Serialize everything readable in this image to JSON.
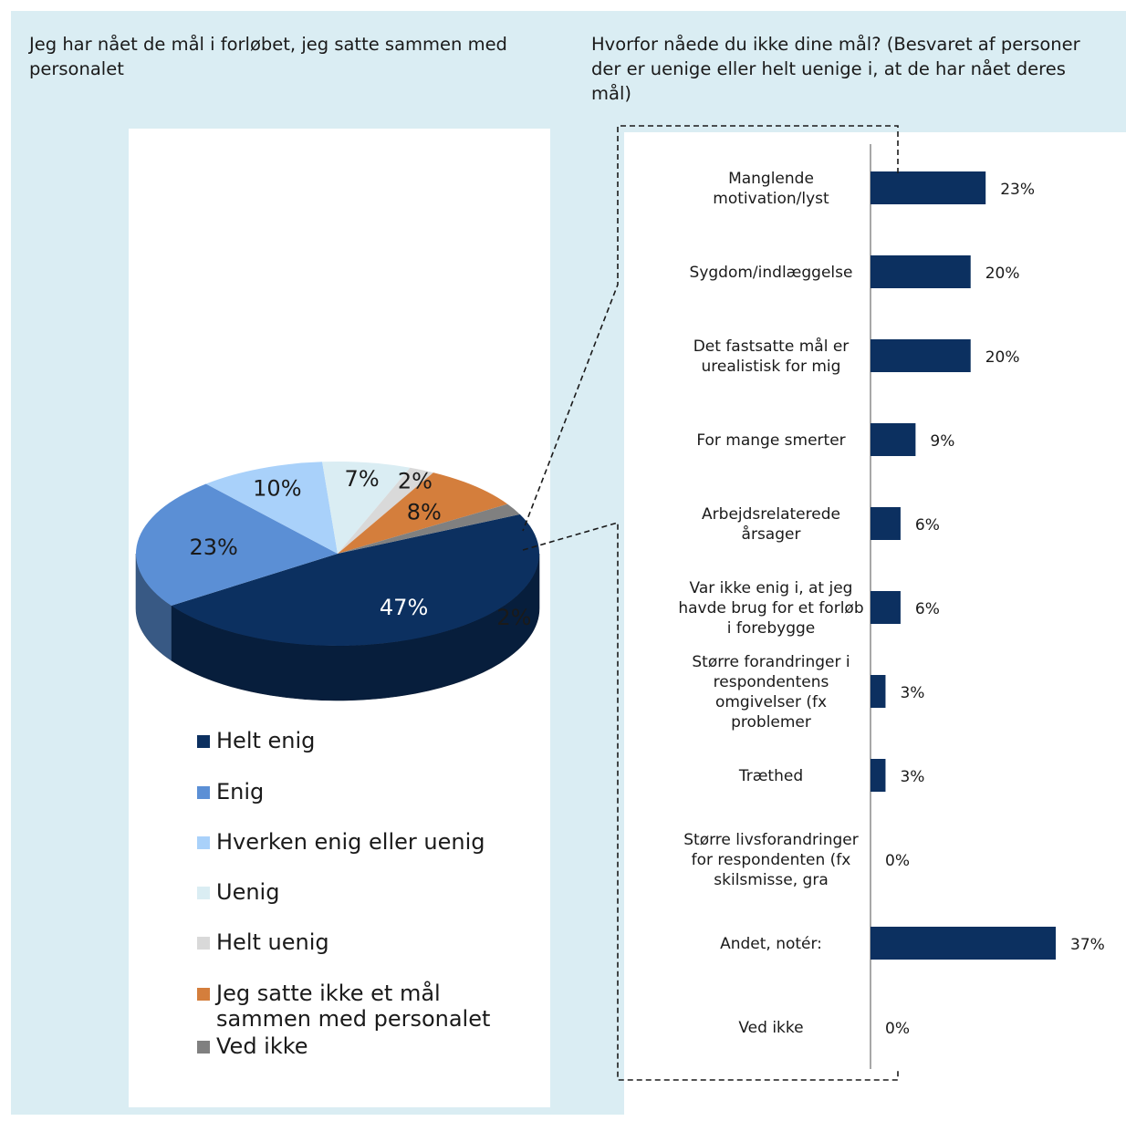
{
  "pie": {
    "title": "Jeg har nået de mål i forløbet, jeg satte sammen med personalet"
  },
  "bar": {
    "title": "Hvorfor nåede du ikke dine mål? (Besvaret af personer der er uenige eller helt uenige i, at de har nået deres mål)"
  },
  "chart_data": [
    {
      "type": "pie",
      "title": "Jeg har nået de mål i forløbet, jeg satte sammen med personalet",
      "unit": "%",
      "slices": [
        {
          "label": "Helt enig",
          "value": 47,
          "display": "47%",
          "color": "#0c3060"
        },
        {
          "label": "Enig",
          "value": 23,
          "display": "23%",
          "color": "#5b8fd5"
        },
        {
          "label": "Hverken enig eller uenig",
          "value": 10,
          "display": "10%",
          "color": "#a9d1fa"
        },
        {
          "label": "Uenig",
          "value": 7,
          "display": "7%",
          "color": "#daedf3"
        },
        {
          "label": "Helt uenig",
          "value": 2,
          "display": "2%",
          "color": "#d9d9d9"
        },
        {
          "label": "Jeg satte ikke et mål sammen med personalet",
          "value": 8,
          "display": "8%",
          "color": "#d47e3c"
        },
        {
          "label": "Ved ikke",
          "value": 2,
          "display": "2%",
          "color": "#808080"
        }
      ],
      "legend_position": "bottom"
    },
    {
      "type": "bar",
      "orientation": "horizontal",
      "title": "Hvorfor nåede du ikke dine mål? (Besvaret af personer der er uenige eller helt uenige i, at de har nået deres mål)",
      "unit": "%",
      "color": "#0c3060",
      "categories": [
        "Manglende motivation/lyst",
        "Sygdom/indlæggelse",
        "Det fastsatte mål er urealistisk for mig",
        "For mange smerter",
        "Arbejdsrelaterede årsager",
        "Var ikke enig i, at jeg havde brug for et forløb i forebygge",
        "Større forandringer i respondentens omgivelser (fx problemer",
        "Træthed",
        "Større livsforandringer for respondenten (fx skilsmisse, gra",
        "Andet, notér:",
        "Ved ikke"
      ],
      "category_lines": [
        [
          "Manglende",
          "motivation/lyst"
        ],
        [
          "Sygdom/indlæggelse"
        ],
        [
          "Det fastsatte mål er",
          "urealistisk for mig"
        ],
        [
          "For mange smerter"
        ],
        [
          "Arbejdsrelaterede",
          "årsager"
        ],
        [
          "Var ikke enig i, at jeg",
          "havde brug for et forløb",
          "i forebygge"
        ],
        [
          "Større forandringer i",
          "respondentens",
          "omgivelser (fx",
          "problemer"
        ],
        [
          "Træthed"
        ],
        [
          "Større livsforandringer",
          "for respondenten (fx",
          "skilsmisse, gra"
        ],
        [
          "Andet, notér:"
        ],
        [
          "Ved ikke"
        ]
      ],
      "values": [
        23,
        20,
        20,
        9,
        6,
        6,
        3,
        3,
        0,
        37,
        0
      ],
      "labels": [
        "23%",
        "20%",
        "20%",
        "9%",
        "6%",
        "6%",
        "3%",
        "3%",
        "0%",
        "37%",
        "0%"
      ],
      "xlim": [
        0,
        37
      ]
    }
  ]
}
